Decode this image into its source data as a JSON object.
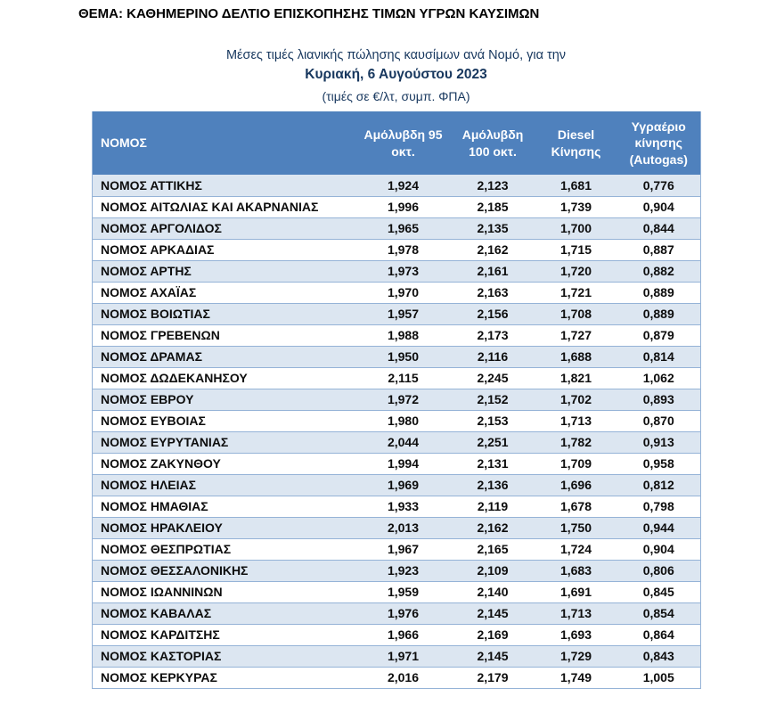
{
  "document": {
    "subject_line": "ΘΕΜΑ: ΚΑΘΗΜΕΡΙΝΟ ΔΕΛΤΙΟ ΕΠΙΣΚΟΠΗΣΗΣ ΤΙΜΩΝ ΥΓΡΩΝ ΚΑΥΣΙΜΩΝ",
    "subtitle": "Μέσες τιμές λιανικής πώλησης καυσίμων ανά Νομό, για την",
    "date_line": "Κυριακή, 6 Αυγούστου 2023",
    "units_line": "(τιμές σε €/λτ, συμπ. ΦΠΑ)"
  },
  "colors": {
    "header_bg": "#4F81BD",
    "header_text": "#FFFFFF",
    "row_alt_bg": "#DCE6F1",
    "row_bg": "#FFFFFF",
    "grid_line": "#95B3D7",
    "subtitle_text": "#17375E",
    "body_text": "#0D0D0D"
  },
  "table": {
    "columns": {
      "0": "ΝΟΜΟΣ",
      "1": "Αμόλυβδη 95 οκτ.",
      "2": "Αμόλυβδη 100 οκτ.",
      "3": "Diesel Κίνησης",
      "4": "Υγραέριο κίνησης (Autogas)"
    },
    "rows": [
      {
        "name": "ΝΟΜΟΣ ΑΤΤΙΚΗΣ",
        "values": [
          "1,924",
          "2,123",
          "1,681",
          "0,776"
        ]
      },
      {
        "name": "ΝΟΜΟΣ ΑΙΤΩΛΙΑΣ ΚΑΙ ΑΚΑΡΝΑΝΙΑΣ",
        "values": [
          "1,996",
          "2,185",
          "1,739",
          "0,904"
        ]
      },
      {
        "name": "ΝΟΜΟΣ ΑΡΓΟΛΙΔΟΣ",
        "values": [
          "1,965",
          "2,135",
          "1,700",
          "0,844"
        ]
      },
      {
        "name": "ΝΟΜΟΣ ΑΡΚΑΔΙΑΣ",
        "values": [
          "1,978",
          "2,162",
          "1,715",
          "0,887"
        ]
      },
      {
        "name": "ΝΟΜΟΣ ΑΡΤΗΣ",
        "values": [
          "1,973",
          "2,161",
          "1,720",
          "0,882"
        ]
      },
      {
        "name": "ΝΟΜΟΣ ΑΧΑΪΑΣ",
        "values": [
          "1,970",
          "2,163",
          "1,721",
          "0,889"
        ]
      },
      {
        "name": "ΝΟΜΟΣ ΒΟΙΩΤΙΑΣ",
        "values": [
          "1,957",
          "2,156",
          "1,708",
          "0,889"
        ]
      },
      {
        "name": "ΝΟΜΟΣ ΓΡΕΒΕΝΩΝ",
        "values": [
          "1,988",
          "2,173",
          "1,727",
          "0,879"
        ]
      },
      {
        "name": "ΝΟΜΟΣ ΔΡΑΜΑΣ",
        "values": [
          "1,950",
          "2,116",
          "1,688",
          "0,814"
        ]
      },
      {
        "name": "ΝΟΜΟΣ ΔΩΔΕΚΑΝΗΣΟΥ",
        "values": [
          "2,115",
          "2,245",
          "1,821",
          "1,062"
        ]
      },
      {
        "name": "ΝΟΜΟΣ ΕΒΡΟΥ",
        "values": [
          "1,972",
          "2,152",
          "1,702",
          "0,893"
        ]
      },
      {
        "name": "ΝΟΜΟΣ ΕΥΒΟΙΑΣ",
        "values": [
          "1,980",
          "2,153",
          "1,713",
          "0,870"
        ]
      },
      {
        "name": "ΝΟΜΟΣ ΕΥΡΥΤΑΝΙΑΣ",
        "values": [
          "2,044",
          "2,251",
          "1,782",
          "0,913"
        ]
      },
      {
        "name": "ΝΟΜΟΣ ΖΑΚΥΝΘΟΥ",
        "values": [
          "1,994",
          "2,131",
          "1,709",
          "0,958"
        ]
      },
      {
        "name": "ΝΟΜΟΣ ΗΛΕΙΑΣ",
        "values": [
          "1,969",
          "2,136",
          "1,696",
          "0,812"
        ]
      },
      {
        "name": "ΝΟΜΟΣ ΗΜΑΘΙΑΣ",
        "values": [
          "1,933",
          "2,119",
          "1,678",
          "0,798"
        ]
      },
      {
        "name": "ΝΟΜΟΣ ΗΡΑΚΛΕΙΟΥ",
        "values": [
          "2,013",
          "2,162",
          "1,750",
          "0,944"
        ]
      },
      {
        "name": "ΝΟΜΟΣ ΘΕΣΠΡΩΤΙΑΣ",
        "values": [
          "1,967",
          "2,165",
          "1,724",
          "0,904"
        ]
      },
      {
        "name": "ΝΟΜΟΣ ΘΕΣΣΑΛΟΝΙΚΗΣ",
        "values": [
          "1,923",
          "2,109",
          "1,683",
          "0,806"
        ]
      },
      {
        "name": "ΝΟΜΟΣ ΙΩΑΝΝΙΝΩΝ",
        "values": [
          "1,959",
          "2,140",
          "1,691",
          "0,845"
        ]
      },
      {
        "name": "ΝΟΜΟΣ ΚΑΒΑΛΑΣ",
        "values": [
          "1,976",
          "2,145",
          "1,713",
          "0,854"
        ]
      },
      {
        "name": "ΝΟΜΟΣ ΚΑΡΔΙΤΣΗΣ",
        "values": [
          "1,966",
          "2,169",
          "1,693",
          "0,864"
        ]
      },
      {
        "name": "ΝΟΜΟΣ ΚΑΣΤΟΡΙΑΣ",
        "values": [
          "1,971",
          "2,145",
          "1,729",
          "0,843"
        ]
      },
      {
        "name": "ΝΟΜΟΣ ΚΕΡΚΥΡΑΣ",
        "values": [
          "2,016",
          "2,179",
          "1,749",
          "1,005"
        ]
      }
    ]
  }
}
